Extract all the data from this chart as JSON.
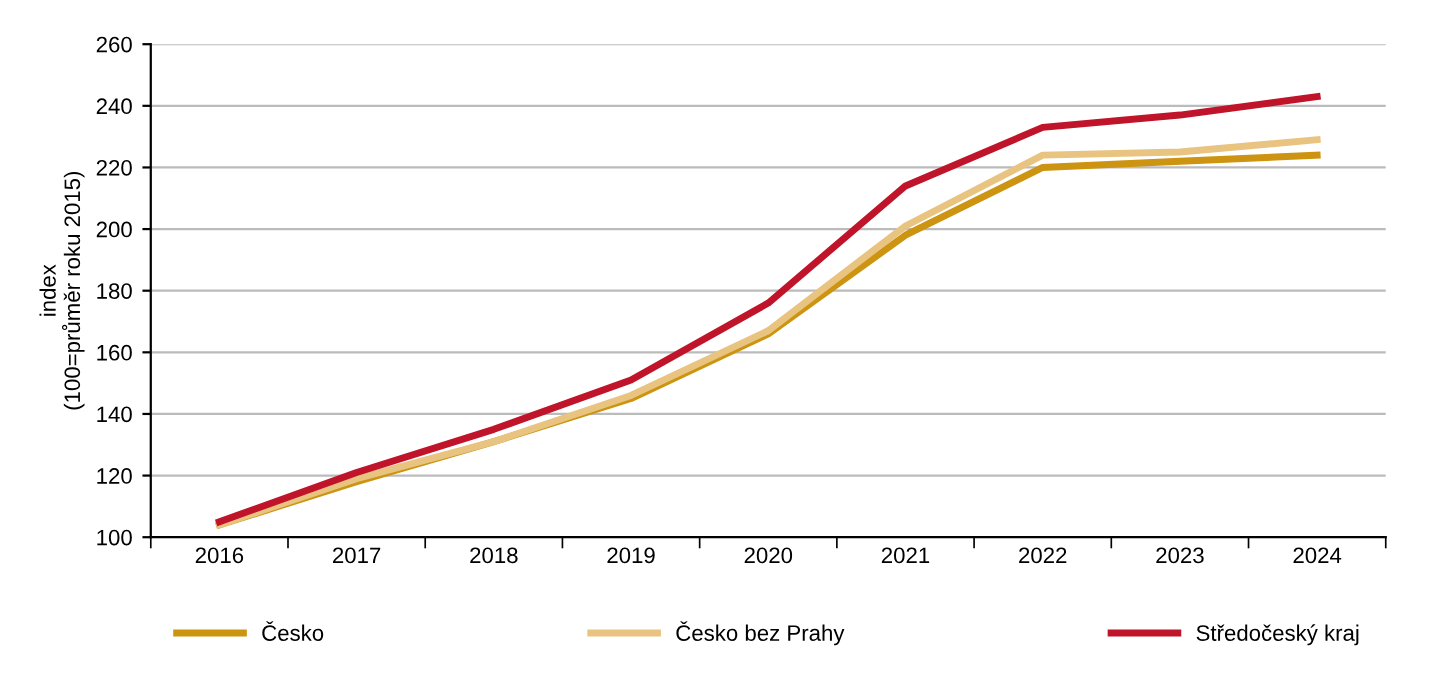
{
  "chart_data": {
    "type": "line",
    "ylabel": "index\n(100=průměr roku 2015)",
    "categories": [
      "2016",
      "2017",
      "2018",
      "2019",
      "2020",
      "2021",
      "2022",
      "2023",
      "2024"
    ],
    "series": [
      {
        "name": "Česko",
        "color": "#cc9410",
        "values": [
          104,
          118,
          131,
          145,
          166,
          198,
          220,
          222,
          224
        ]
      },
      {
        "name": "Česko bez Prahy",
        "color": "#e8c480",
        "values": [
          104,
          119,
          131,
          146,
          167,
          201,
          224,
          225,
          229
        ]
      },
      {
        "name": "Středočeský kraj",
        "color": "#c0142a",
        "values": [
          105,
          121,
          135,
          151,
          176,
          214,
          233,
          237,
          243
        ]
      }
    ],
    "ylim": [
      100,
      260
    ],
    "yticks": [
      100,
      120,
      140,
      160,
      180,
      200,
      220,
      240,
      260
    ],
    "grid": "y",
    "legend": "bottom",
    "marker": "none",
    "line_style": "solid"
  }
}
